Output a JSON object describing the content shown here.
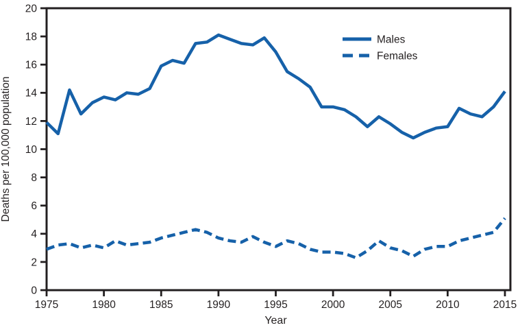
{
  "chart_data": {
    "type": "line",
    "title": "",
    "xlabel": "Year",
    "ylabel": "Deaths per 100,000 population",
    "xlim": [
      1975,
      2015
    ],
    "ylim": [
      0,
      20
    ],
    "grid": false,
    "legend_position": "top-center-right-inside",
    "axis_color": "#231F20",
    "line_color": "#1661A9",
    "xticks": [
      1975,
      1980,
      1985,
      1990,
      1995,
      2000,
      2005,
      2010,
      2015
    ],
    "yticks": [
      0,
      2,
      4,
      6,
      8,
      10,
      12,
      14,
      16,
      18,
      20
    ],
    "x": [
      1975,
      1976,
      1977,
      1978,
      1979,
      1980,
      1981,
      1982,
      1983,
      1984,
      1985,
      1986,
      1987,
      1988,
      1989,
      1990,
      1991,
      1992,
      1993,
      1994,
      1995,
      1996,
      1997,
      1998,
      1999,
      2000,
      2001,
      2002,
      2003,
      2004,
      2005,
      2006,
      2007,
      2008,
      2009,
      2010,
      2011,
      2012,
      2013,
      2014,
      2015
    ],
    "series": [
      {
        "name": "Males",
        "line_style": "solid",
        "color": "#1661A9",
        "values": [
          11.9,
          11.1,
          14.2,
          12.5,
          13.3,
          13.7,
          13.5,
          14.0,
          13.9,
          14.3,
          15.9,
          16.3,
          16.1,
          17.5,
          17.6,
          18.1,
          17.8,
          17.5,
          17.4,
          17.9,
          16.9,
          15.5,
          15.0,
          14.4,
          13.0,
          13.0,
          12.8,
          12.3,
          11.6,
          12.3,
          11.8,
          11.2,
          10.8,
          11.2,
          11.5,
          11.6,
          12.9,
          12.5,
          12.3,
          13.0,
          14.1
        ]
      },
      {
        "name": "Females",
        "line_style": "dashed",
        "color": "#1661A9",
        "values": [
          2.9,
          3.2,
          3.3,
          3.0,
          3.2,
          3.0,
          3.5,
          3.2,
          3.3,
          3.4,
          3.7,
          3.9,
          4.1,
          4.3,
          4.1,
          3.7,
          3.5,
          3.4,
          3.8,
          3.4,
          3.1,
          3.5,
          3.3,
          2.9,
          2.7,
          2.7,
          2.6,
          2.3,
          2.8,
          3.5,
          3.0,
          2.8,
          2.4,
          2.9,
          3.1,
          3.1,
          3.5,
          3.7,
          3.9,
          4.1,
          5.1
        ]
      }
    ],
    "legend": [
      {
        "label": "Males",
        "swatch": "solid-line"
      },
      {
        "label": "Females",
        "swatch": "dashed-line"
      }
    ]
  }
}
